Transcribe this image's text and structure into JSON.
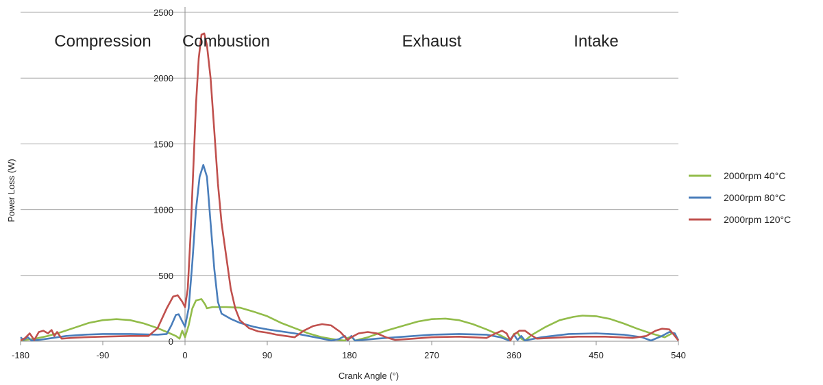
{
  "chart_data": {
    "type": "line",
    "xlabel": "Crank Angle (°)",
    "ylabel": "Power Loss (W)",
    "xlim": [
      -180,
      540
    ],
    "ylim": [
      0,
      2500
    ],
    "xticks": [
      -180,
      -90,
      0,
      90,
      180,
      270,
      360,
      450,
      540
    ],
    "yticks": [
      0,
      500,
      1000,
      1500,
      2000,
      2500
    ],
    "grid": "horizontal",
    "legend_position": "right",
    "annotations": [
      {
        "text": "Compression",
        "x": -90
      },
      {
        "text": "Combustion",
        "x": 45
      },
      {
        "text": "Exhaust",
        "x": 270
      },
      {
        "text": "Intake",
        "x": 450
      }
    ],
    "series": [
      {
        "name": "2000rpm 40°C",
        "color": "#92bc4a",
        "points": [
          [
            -180,
            5
          ],
          [
            -165,
            18
          ],
          [
            -150,
            40
          ],
          [
            -135,
            70
          ],
          [
            -120,
            105
          ],
          [
            -105,
            140
          ],
          [
            -90,
            160
          ],
          [
            -75,
            168
          ],
          [
            -60,
            160
          ],
          [
            -45,
            135
          ],
          [
            -30,
            100
          ],
          [
            -20,
            70
          ],
          [
            -10,
            40
          ],
          [
            -6,
            20
          ],
          [
            -3,
            80
          ],
          [
            0,
            30
          ],
          [
            4,
            120
          ],
          [
            8,
            250
          ],
          [
            12,
            310
          ],
          [
            18,
            320
          ],
          [
            22,
            280
          ],
          [
            24,
            250
          ],
          [
            30,
            260
          ],
          [
            45,
            260
          ],
          [
            60,
            255
          ],
          [
            75,
            225
          ],
          [
            90,
            190
          ],
          [
            105,
            140
          ],
          [
            120,
            100
          ],
          [
            135,
            60
          ],
          [
            150,
            30
          ],
          [
            165,
            12
          ],
          [
            175,
            5
          ],
          [
            178,
            25
          ],
          [
            182,
            35
          ],
          [
            186,
            5
          ],
          [
            200,
            30
          ],
          [
            220,
            80
          ],
          [
            240,
            120
          ],
          [
            255,
            150
          ],
          [
            270,
            168
          ],
          [
            285,
            172
          ],
          [
            300,
            160
          ],
          [
            315,
            130
          ],
          [
            330,
            90
          ],
          [
            345,
            45
          ],
          [
            352,
            20
          ],
          [
            356,
            5
          ],
          [
            360,
            55
          ],
          [
            364,
            65
          ],
          [
            368,
            20
          ],
          [
            372,
            5
          ],
          [
            380,
            50
          ],
          [
            395,
            110
          ],
          [
            410,
            160
          ],
          [
            425,
            185
          ],
          [
            435,
            195
          ],
          [
            450,
            190
          ],
          [
            465,
            170
          ],
          [
            480,
            135
          ],
          [
            495,
            95
          ],
          [
            510,
            60
          ],
          [
            525,
            30
          ],
          [
            533,
            60
          ],
          [
            536,
            60
          ],
          [
            540,
            5
          ]
        ]
      },
      {
        "name": "2000rpm 80°C",
        "color": "#4a7ebb",
        "points": [
          [
            -180,
            30
          ],
          [
            -177,
            10
          ],
          [
            -172,
            30
          ],
          [
            -168,
            5
          ],
          [
            -160,
            10
          ],
          [
            -150,
            20
          ],
          [
            -130,
            40
          ],
          [
            -110,
            50
          ],
          [
            -90,
            55
          ],
          [
            -60,
            55
          ],
          [
            -30,
            50
          ],
          [
            -20,
            55
          ],
          [
            -15,
            120
          ],
          [
            -10,
            200
          ],
          [
            -7,
            205
          ],
          [
            -3,
            150
          ],
          [
            0,
            110
          ],
          [
            4,
            250
          ],
          [
            8,
            600
          ],
          [
            12,
            1000
          ],
          [
            16,
            1250
          ],
          [
            20,
            1340
          ],
          [
            24,
            1250
          ],
          [
            28,
            900
          ],
          [
            32,
            550
          ],
          [
            36,
            300
          ],
          [
            40,
            210
          ],
          [
            50,
            170
          ],
          [
            60,
            140
          ],
          [
            75,
            110
          ],
          [
            90,
            90
          ],
          [
            120,
            60
          ],
          [
            135,
            40
          ],
          [
            150,
            20
          ],
          [
            160,
            5
          ],
          [
            168,
            15
          ],
          [
            175,
            40
          ],
          [
            178,
            5
          ],
          [
            182,
            40
          ],
          [
            186,
            5
          ],
          [
            195,
            10
          ],
          [
            210,
            20
          ],
          [
            240,
            35
          ],
          [
            270,
            50
          ],
          [
            300,
            55
          ],
          [
            330,
            50
          ],
          [
            345,
            30
          ],
          [
            355,
            5
          ],
          [
            360,
            50
          ],
          [
            364,
            10
          ],
          [
            368,
            40
          ],
          [
            372,
            5
          ],
          [
            390,
            30
          ],
          [
            420,
            55
          ],
          [
            450,
            60
          ],
          [
            480,
            50
          ],
          [
            500,
            30
          ],
          [
            510,
            5
          ],
          [
            522,
            40
          ],
          [
            530,
            70
          ],
          [
            536,
            60
          ],
          [
            540,
            5
          ]
        ]
      },
      {
        "name": "2000rpm 120°C",
        "color": "#c0504d",
        "points": [
          [
            -180,
            5
          ],
          [
            -175,
            25
          ],
          [
            -170,
            60
          ],
          [
            -165,
            10
          ],
          [
            -160,
            70
          ],
          [
            -155,
            80
          ],
          [
            -150,
            60
          ],
          [
            -146,
            85
          ],
          [
            -143,
            40
          ],
          [
            -140,
            70
          ],
          [
            -135,
            20
          ],
          [
            -125,
            25
          ],
          [
            -110,
            30
          ],
          [
            -90,
            35
          ],
          [
            -60,
            40
          ],
          [
            -40,
            40
          ],
          [
            -30,
            100
          ],
          [
            -20,
            250
          ],
          [
            -13,
            340
          ],
          [
            -8,
            350
          ],
          [
            -3,
            300
          ],
          [
            0,
            260
          ],
          [
            3,
            400
          ],
          [
            6,
            800
          ],
          [
            9,
            1300
          ],
          [
            12,
            1800
          ],
          [
            15,
            2150
          ],
          [
            18,
            2330
          ],
          [
            21,
            2340
          ],
          [
            24,
            2250
          ],
          [
            28,
            2000
          ],
          [
            32,
            1600
          ],
          [
            36,
            1200
          ],
          [
            40,
            900
          ],
          [
            45,
            650
          ],
          [
            50,
            400
          ],
          [
            55,
            250
          ],
          [
            60,
            160
          ],
          [
            70,
            100
          ],
          [
            80,
            75
          ],
          [
            90,
            65
          ],
          [
            100,
            50
          ],
          [
            110,
            40
          ],
          [
            120,
            30
          ],
          [
            130,
            80
          ],
          [
            140,
            115
          ],
          [
            150,
            130
          ],
          [
            160,
            120
          ],
          [
            170,
            70
          ],
          [
            178,
            10
          ],
          [
            182,
            30
          ],
          [
            190,
            60
          ],
          [
            200,
            70
          ],
          [
            210,
            60
          ],
          [
            220,
            30
          ],
          [
            230,
            10
          ],
          [
            250,
            20
          ],
          [
            270,
            30
          ],
          [
            300,
            35
          ],
          [
            330,
            25
          ],
          [
            340,
            60
          ],
          [
            347,
            80
          ],
          [
            352,
            60
          ],
          [
            356,
            5
          ],
          [
            360,
            50
          ],
          [
            366,
            80
          ],
          [
            372,
            80
          ],
          [
            378,
            50
          ],
          [
            385,
            20
          ],
          [
            400,
            25
          ],
          [
            430,
            35
          ],
          [
            460,
            35
          ],
          [
            490,
            25
          ],
          [
            505,
            40
          ],
          [
            515,
            80
          ],
          [
            522,
            95
          ],
          [
            530,
            90
          ],
          [
            535,
            50
          ],
          [
            540,
            5
          ]
        ]
      }
    ]
  }
}
